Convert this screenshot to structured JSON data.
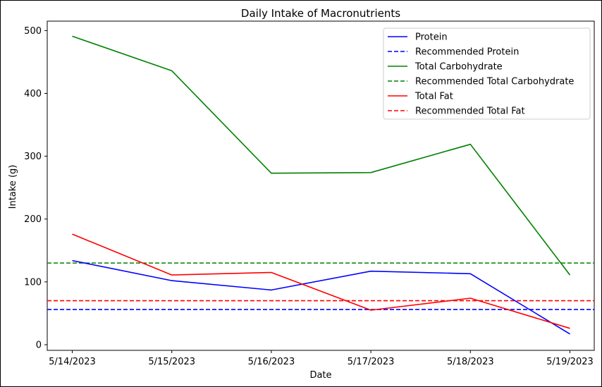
{
  "chart_data": {
    "type": "line",
    "title": "Daily Intake of Macronutrients",
    "xlabel": "Date",
    "ylabel": "Intake (g)",
    "categories": [
      "5/14/2023",
      "5/15/2023",
      "5/16/2023",
      "5/17/2023",
      "5/18/2023",
      "5/19/2023"
    ],
    "yticks": [
      "0",
      "100",
      "200",
      "300",
      "400",
      "500"
    ],
    "ylim": [
      -9,
      515
    ],
    "grid": false,
    "legend_position": "top-right",
    "series": [
      {
        "name": "Protein",
        "values": [
          134,
          102,
          87,
          117,
          113,
          17
        ],
        "color": "#0000ff",
        "style": "solid"
      },
      {
        "name": "Total Carbohydrate",
        "values": [
          491,
          436,
          273,
          274,
          319,
          111
        ],
        "color": "#008000",
        "style": "solid"
      },
      {
        "name": "Total Fat",
        "values": [
          176,
          111,
          115,
          55,
          74,
          26
        ],
        "color": "#ff0000",
        "style": "solid"
      }
    ],
    "reference_lines": [
      {
        "name": "Recommended Protein",
        "value": 56,
        "color": "#0000ff",
        "style": "dashed"
      },
      {
        "name": "Recommended Total Carbohydrate",
        "value": 130,
        "color": "#008000",
        "style": "dashed"
      },
      {
        "name": "Recommended Total Fat",
        "value": 70,
        "color": "#ff0000",
        "style": "dashed"
      }
    ],
    "legend": [
      {
        "label": "Protein",
        "color": "#0000ff",
        "style": "solid"
      },
      {
        "label": "Recommended Protein",
        "color": "#0000ff",
        "style": "dashed"
      },
      {
        "label": "Total Carbohydrate",
        "color": "#008000",
        "style": "solid"
      },
      {
        "label": "Recommended Total Carbohydrate",
        "color": "#008000",
        "style": "dashed"
      },
      {
        "label": "Total Fat",
        "color": "#ff0000",
        "style": "solid"
      },
      {
        "label": "Recommended Total Fat",
        "color": "#ff0000",
        "style": "dashed"
      }
    ]
  }
}
